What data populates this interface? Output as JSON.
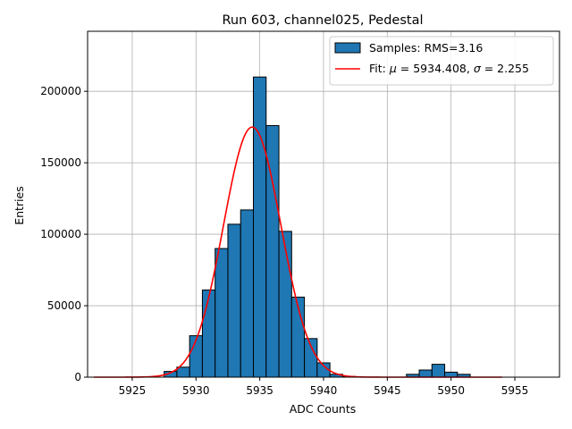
{
  "chart_data": {
    "type": "bar",
    "title": "Run 603, channel025, Pedestal",
    "xlabel": "ADC Counts",
    "ylabel": "Entries",
    "xlim": [
      5921.5,
      5958.5
    ],
    "ylim": [
      0,
      242000
    ],
    "grid": true,
    "legend_placement": "top-right",
    "x_ticks": [
      5925,
      5930,
      5935,
      5940,
      5945,
      5950,
      5955
    ],
    "y_ticks": [
      0,
      50000,
      100000,
      150000,
      200000
    ],
    "colors": {
      "bars": "#1f77b4",
      "fit": "#ff0000"
    },
    "histogram": {
      "name": "Samples: RMS=3.16",
      "bin_width": 1,
      "bins": [
        {
          "x": 5928,
          "value": 4000
        },
        {
          "x": 5929,
          "value": 7000
        },
        {
          "x": 5930,
          "value": 29000
        },
        {
          "x": 5931,
          "value": 61000
        },
        {
          "x": 5932,
          "value": 90000
        },
        {
          "x": 5933,
          "value": 107000
        },
        {
          "x": 5934,
          "value": 117000
        },
        {
          "x": 5935,
          "value": 210000
        },
        {
          "x": 5936,
          "value": 176000
        },
        {
          "x": 5937,
          "value": 102000
        },
        {
          "x": 5938,
          "value": 56000
        },
        {
          "x": 5939,
          "value": 27000
        },
        {
          "x": 5940,
          "value": 10000
        },
        {
          "x": 5941,
          "value": 2000
        },
        {
          "x": 5942,
          "value": 500
        },
        {
          "x": 5947,
          "value": 2000
        },
        {
          "x": 5948,
          "value": 5000
        },
        {
          "x": 5949,
          "value": 9000
        },
        {
          "x": 5950,
          "value": 3500
        },
        {
          "x": 5951,
          "value": 2000
        }
      ]
    },
    "fit": {
      "name_prefix": "Fit: ",
      "mu_symbol": "μ",
      "mu_text": " = 5934.408, ",
      "sigma_symbol": "σ",
      "sigma_text": " = 2.255",
      "mu": 5934.408,
      "sigma": 2.255,
      "amplitude": 175000,
      "x_range": [
        5922,
        5954
      ]
    }
  }
}
